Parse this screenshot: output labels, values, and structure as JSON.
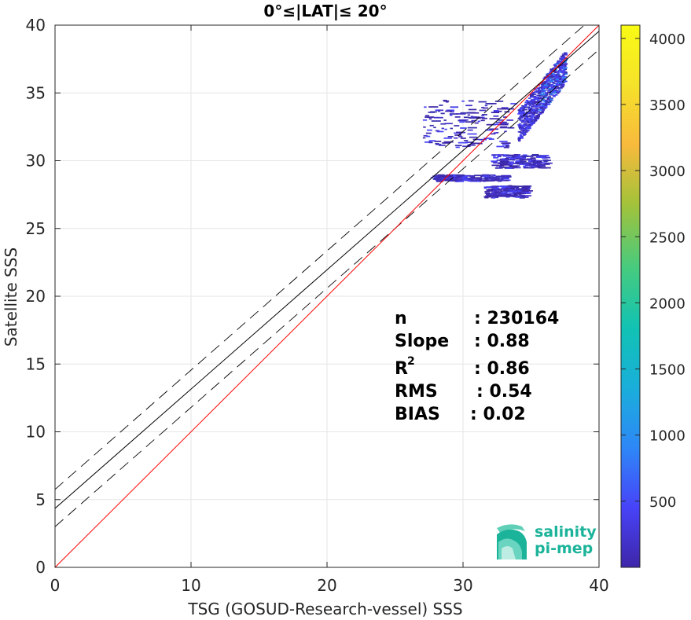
{
  "chart_data": {
    "type": "scatter",
    "subtype": "2d-density-histogram",
    "title": "0°≤|LAT|≤ 20°",
    "xlabel": "TSG (GOSUD-Research-vessel) SSS",
    "ylabel": "Satellite SSS",
    "xlim": [
      0,
      40
    ],
    "ylim": [
      0,
      40
    ],
    "xticks": [
      0,
      10,
      20,
      30,
      40
    ],
    "yticks": [
      0,
      5,
      10,
      15,
      20,
      25,
      30,
      35,
      40
    ],
    "grid": true,
    "lines": {
      "one_to_one": {
        "slope": 1,
        "intercept": 0,
        "color": "#ff0000"
      },
      "fit": {
        "slope": 0.88,
        "intercept": 4.35,
        "color": "#000000"
      },
      "fit_upper": {
        "slope": 0.88,
        "intercept": 5.75,
        "color": "#000000",
        "dash": true
      },
      "fit_lower": {
        "slope": 0.88,
        "intercept": 3.0,
        "color": "#000000",
        "dash": true
      }
    },
    "colorbar": {
      "min": 0,
      "max": 4100,
      "ticks": [
        500,
        1000,
        1500,
        2000,
        2500,
        3000,
        3500,
        4000
      ],
      "colors": [
        "#3e26a8",
        "#4743f8",
        "#2e87f7",
        "#1aaedb",
        "#11c2b4",
        "#45cb80",
        "#a3c23a",
        "#f8ba3d",
        "#f5e22a",
        "#f9fb15"
      ]
    },
    "clusters": [
      {
        "x": [
          34.0,
          37.5
        ],
        "y": [
          32.0,
          37.0
        ],
        "weight": "high"
      },
      {
        "x": [
          27.0,
          33.5
        ],
        "y": [
          31.0,
          34.5
        ],
        "weight": "low"
      },
      {
        "x": [
          27.5,
          33.0
        ],
        "y": [
          28.5,
          29.0
        ],
        "weight": "low"
      },
      {
        "x": [
          31.5,
          34.5
        ],
        "y": [
          27.3,
          28.2
        ],
        "weight": "low"
      },
      {
        "x": [
          32.0,
          36.0
        ],
        "y": [
          29.5,
          30.5
        ],
        "weight": "low"
      }
    ]
  },
  "stats": {
    "n_label": "n",
    "n_value": ": 230164",
    "slope_label": "Slope",
    "slope_value": ": 0.88",
    "r2_label": "R",
    "r2_sup": "2",
    "r2_value": ": 0.86",
    "rms_label": "RMS",
    "rms_value": ": 0.54",
    "bias_label": "BIAS",
    "bias_value": ": 0.02"
  },
  "logo": {
    "line1": "salinity",
    "line2": "pi-mep",
    "color": "#1bb39a"
  }
}
